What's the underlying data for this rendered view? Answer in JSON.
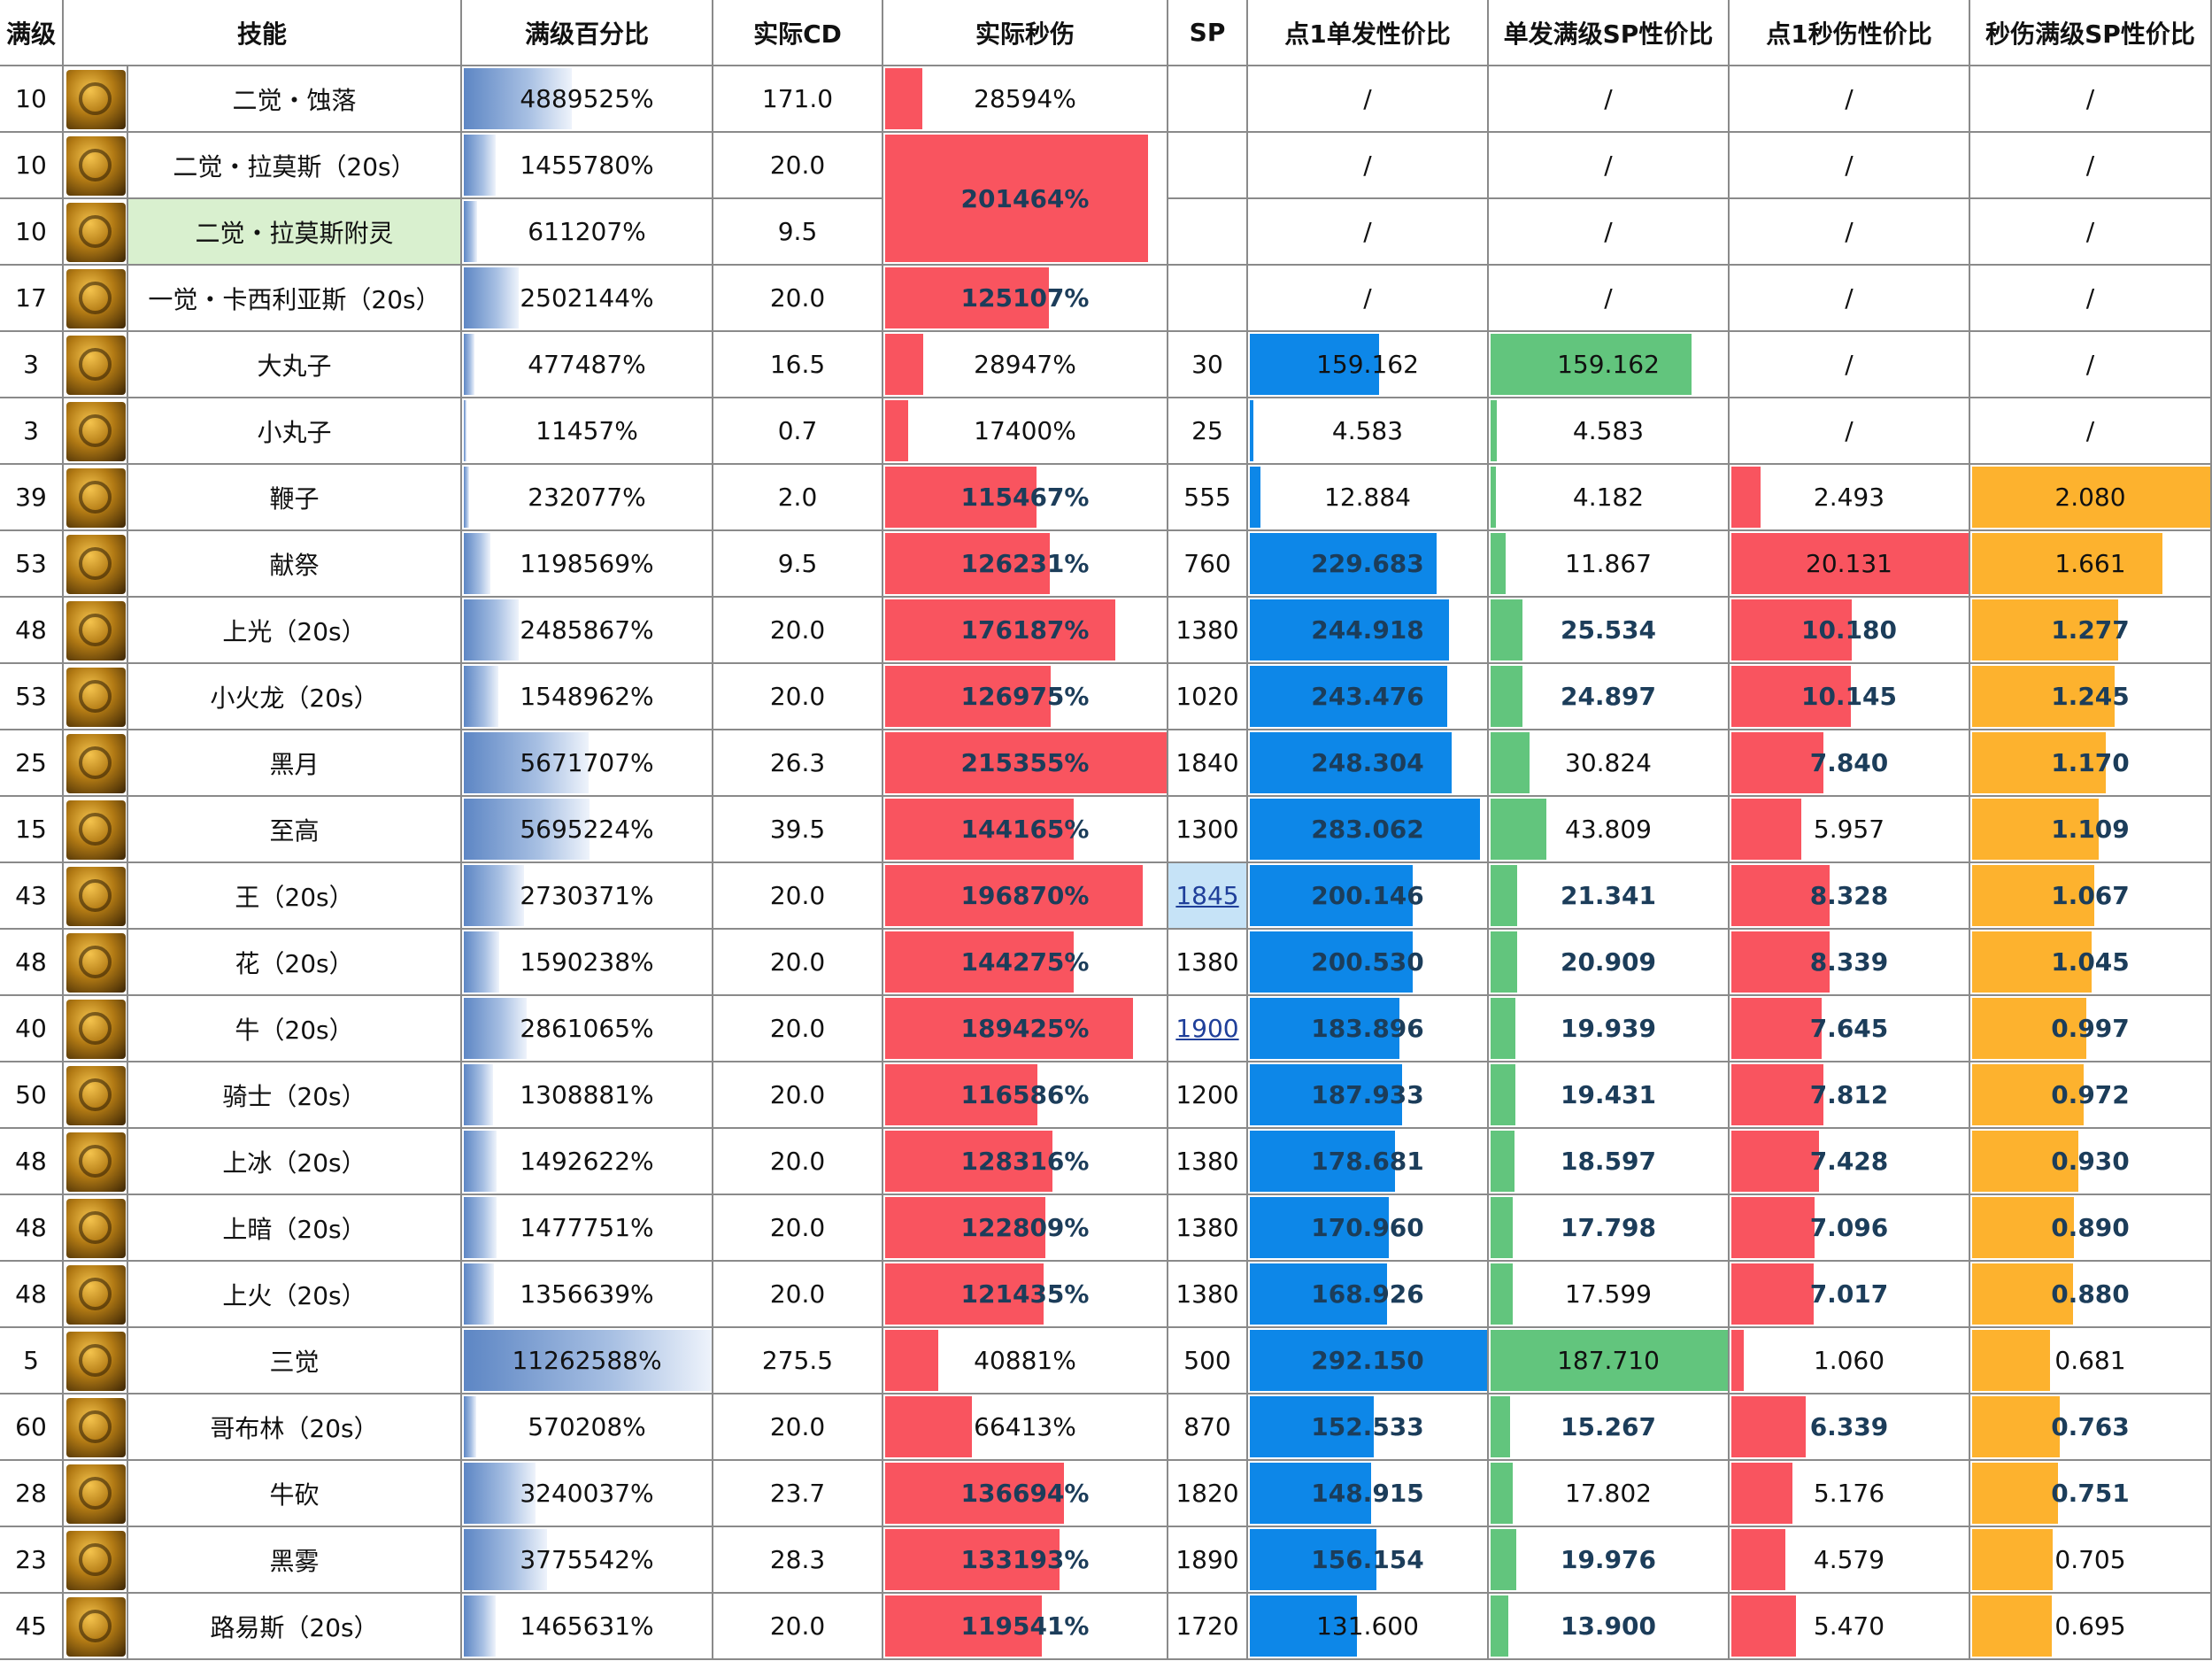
{
  "headers": [
    "满级",
    "技能",
    "满级百分比",
    "实际CD",
    "实际秒伤",
    "SP",
    "点1单发性价比",
    "单发满级SP性价比",
    "点1秒伤性价比",
    "秒伤满级SP性价比"
  ],
  "colors": {
    "percent_bar": "#5d86c4",
    "dps_bar": "#f9545f",
    "single_value_bar": "#0d87e8",
    "single_sp_bar": "#62c57d",
    "dps_value_bar": "#f9545f",
    "dps_sp_bar": "#fdb22e",
    "grid": "#8a8a8a"
  },
  "scales": {
    "percent_max": 11262588,
    "dps_max": 215355,
    "single_max": 292.15,
    "single_sp_max": 187.71,
    "dps_value_max": 20.131,
    "dps_sp_max": 2.08
  },
  "rows": [
    {
      "level": "10",
      "name": "二觉・蚀落",
      "icon": "crescent-swirl-icon",
      "percent": "4889525%",
      "pct": 4889525,
      "cd": "171.0",
      "dps": "28594%",
      "dpsv": 28594,
      "sp": "",
      "single": "/",
      "sv": 0,
      "single_sp": "/",
      "ssv": 0,
      "dps_val": "/",
      "dv": 0,
      "dps_sp": "/",
      "dsv": 0
    },
    {
      "level": "10",
      "name": "二觉・拉莫斯（20s）",
      "icon": "lamos-dragon-icon",
      "percent": "1455780%",
      "pct": 1455780,
      "cd": "20.0",
      "dps": "201464%",
      "dpsv": 201464,
      "dps_span": 2,
      "sp": "",
      "single": "/",
      "sv": 0,
      "single_sp": "/",
      "ssv": 0,
      "dps_val": "/",
      "dv": 0,
      "dps_sp": "/",
      "dsv": 0
    },
    {
      "level": "10",
      "name": "二觉・拉莫斯附灵",
      "icon": "lamos-dragon-icon",
      "name_highlight": true,
      "percent": "611207%",
      "pct": 611207,
      "cd": "9.5",
      "dps": "",
      "dpsv": 0,
      "dps_merged": true,
      "sp": "",
      "single": "/",
      "sv": 0,
      "single_sp": "/",
      "ssv": 0,
      "dps_val": "/",
      "dv": 0,
      "dps_sp": "/",
      "dsv": 0
    },
    {
      "level": "17",
      "name": "一觉・卡西利亚斯（20s）",
      "icon": "demon-mask-icon",
      "percent": "2502144%",
      "pct": 2502144,
      "cd": "20.0",
      "dps": "125107%",
      "dpsv": 125107,
      "sp": "",
      "single": "/",
      "sv": 0,
      "single_sp": "/",
      "ssv": 0,
      "dps_val": "/",
      "dv": 0,
      "dps_sp": "/",
      "dsv": 0
    },
    {
      "level": "3",
      "name": "大丸子",
      "icon": "flame-pillars-icon",
      "percent": "477487%",
      "pct": 477487,
      "cd": "16.5",
      "dps": "28947%",
      "dpsv": 28947,
      "sp": "30",
      "single": "159.162",
      "sv": 159.162,
      "single_sp": "159.162",
      "ssv": 159.162,
      "dps_val": "/",
      "dv": 0,
      "dps_sp": "/",
      "dsv": 0
    },
    {
      "level": "3",
      "name": "小丸子",
      "icon": "running-figure-icon",
      "percent": "11457%",
      "pct": 11457,
      "cd": "0.7",
      "dps": "17400%",
      "dpsv": 17400,
      "sp": "25",
      "single": "4.583",
      "sv": 4.583,
      "single_sp": "4.583",
      "ssv": 4.583,
      "dps_val": "/",
      "dv": 0,
      "dps_sp": "/",
      "dsv": 0
    },
    {
      "level": "39",
      "name": "鞭子",
      "icon": "whip-icon",
      "percent": "232077%",
      "pct": 232077,
      "cd": "2.0",
      "dps": "115467%",
      "dpsv": 115467,
      "sp": "555",
      "single": "12.884",
      "sv": 12.884,
      "single_sp": "4.182",
      "ssv": 4.182,
      "dps_val": "2.493",
      "dv": 2.493,
      "dps_sp": "2.080",
      "dsv": 2.08
    },
    {
      "level": "53",
      "name": "献祭",
      "icon": "sunburst-icon",
      "percent": "1198569%",
      "pct": 1198569,
      "cd": "9.5",
      "dps": "126231%",
      "dpsv": 126231,
      "sp": "760",
      "single": "229.683",
      "sv": 229.683,
      "single_sp": "11.867",
      "ssv": 11.867,
      "dps_val": "20.131",
      "dv": 20.131,
      "dps_sp": "1.661",
      "dsv": 1.661
    },
    {
      "level": "48",
      "name": "上光（20s）",
      "icon": "light-sigil-icon",
      "percent": "2485867%",
      "pct": 2485867,
      "cd": "20.0",
      "dps": "176187%",
      "dpsv": 176187,
      "sp": "1380",
      "single": "244.918",
      "sv": 244.918,
      "single_sp": "25.534",
      "ssv": 25.534,
      "dps_val": "10.180",
      "dv": 10.18,
      "dps_sp": "1.277",
      "dsv": 1.277
    },
    {
      "level": "53",
      "name": "小火龙（20s）",
      "icon": "fire-dragon-icon",
      "percent": "1548962%",
      "pct": 1548962,
      "cd": "20.0",
      "dps": "126975%",
      "dpsv": 126975,
      "sp": "1020",
      "single": "243.476",
      "sv": 243.476,
      "single_sp": "24.897",
      "ssv": 24.897,
      "dps_val": "10.145",
      "dv": 10.145,
      "dps_sp": "1.245",
      "dsv": 1.245
    },
    {
      "level": "25",
      "name": "黑月",
      "icon": "black-moon-icon",
      "percent": "5671707%",
      "pct": 5671707,
      "cd": "26.3",
      "dps": "215355%",
      "dpsv": 215355,
      "sp": "1840",
      "single": "248.304",
      "sv": 248.304,
      "single_sp": "30.824",
      "ssv": 30.824,
      "dps_val": "7.840",
      "dv": 7.84,
      "dps_sp": "1.170",
      "dsv": 1.17
    },
    {
      "level": "15",
      "name": "至高",
      "icon": "supreme-sigil-icon",
      "percent": "5695224%",
      "pct": 5695224,
      "cd": "39.5",
      "dps": "144165%",
      "dpsv": 144165,
      "sp": "1300",
      "single": "283.062",
      "sv": 283.062,
      "single_sp": "43.809",
      "ssv": 43.809,
      "dps_val": "5.957",
      "dv": 5.957,
      "dps_sp": "1.109",
      "dsv": 1.109
    },
    {
      "level": "43",
      "name": "王（20s）",
      "icon": "crown-icon",
      "percent": "2730371%",
      "pct": 2730371,
      "cd": "20.0",
      "dps": "196870%",
      "dpsv": 196870,
      "sp": "1845",
      "sp_link": true,
      "sp_highlight": true,
      "single": "200.146",
      "sv": 200.146,
      "single_sp": "21.341",
      "ssv": 21.341,
      "dps_val": "8.328",
      "dv": 8.328,
      "dps_sp": "1.067",
      "dsv": 1.067
    },
    {
      "level": "48",
      "name": "花（20s）",
      "icon": "flower-icon",
      "percent": "1590238%",
      "pct": 1590238,
      "cd": "20.0",
      "dps": "144275%",
      "dpsv": 144275,
      "sp": "1380",
      "single": "200.530",
      "sv": 200.53,
      "single_sp": "20.909",
      "ssv": 20.909,
      "dps_val": "8.339",
      "dv": 8.339,
      "dps_sp": "1.045",
      "dsv": 1.045
    },
    {
      "level": "40",
      "name": "牛（20s）",
      "icon": "bull-icon",
      "percent": "2861065%",
      "pct": 2861065,
      "cd": "20.0",
      "dps": "189425%",
      "dpsv": 189425,
      "sp": "1900",
      "sp_link": true,
      "single": "183.896",
      "sv": 183.896,
      "single_sp": "19.939",
      "ssv": 19.939,
      "dps_val": "7.645",
      "dv": 7.645,
      "dps_sp": "0.997",
      "dsv": 0.997
    },
    {
      "level": "50",
      "name": "骑士（20s）",
      "icon": "shield-icon",
      "percent": "1308881%",
      "pct": 1308881,
      "cd": "20.0",
      "dps": "116586%",
      "dpsv": 116586,
      "sp": "1200",
      "single": "187.933",
      "sv": 187.933,
      "single_sp": "19.431",
      "ssv": 19.431,
      "dps_val": "7.812",
      "dv": 7.812,
      "dps_sp": "0.972",
      "dsv": 0.972
    },
    {
      "level": "48",
      "name": "上冰（20s）",
      "icon": "ice-sigil-icon",
      "percent": "1492622%",
      "pct": 1492622,
      "cd": "20.0",
      "dps": "128316%",
      "dpsv": 128316,
      "sp": "1380",
      "single": "178.681",
      "sv": 178.681,
      "single_sp": "18.597",
      "ssv": 18.597,
      "dps_val": "7.428",
      "dv": 7.428,
      "dps_sp": "0.930",
      "dsv": 0.93
    },
    {
      "level": "48",
      "name": "上暗（20s）",
      "icon": "dark-sigil-icon",
      "percent": "1477751%",
      "pct": 1477751,
      "cd": "20.0",
      "dps": "122809%",
      "dpsv": 122809,
      "sp": "1380",
      "single": "170.960",
      "sv": 170.96,
      "single_sp": "17.798",
      "ssv": 17.798,
      "dps_val": "7.096",
      "dv": 7.096,
      "dps_sp": "0.890",
      "dsv": 0.89
    },
    {
      "level": "48",
      "name": "上火（20s）",
      "icon": "fire-sigil-icon",
      "percent": "1356639%",
      "pct": 1356639,
      "cd": "20.0",
      "dps": "121435%",
      "dpsv": 121435,
      "sp": "1380",
      "single": "168.926",
      "sv": 168.926,
      "single_sp": "17.599",
      "ssv": 17.599,
      "dps_val": "7.017",
      "dv": 7.017,
      "dps_sp": "0.880",
      "dsv": 0.88
    },
    {
      "level": "5",
      "name": "三觉",
      "icon": "third-awakening-icon",
      "percent": "11262588%",
      "pct": 11262588,
      "cd": "275.5",
      "dps": "40881%",
      "dpsv": 40881,
      "sp": "500",
      "single": "292.150",
      "sv": 292.15,
      "single_sp": "187.710",
      "ssv": 187.71,
      "dps_val": "1.060",
      "dv": 1.06,
      "dps_sp": "0.681",
      "dsv": 0.681
    },
    {
      "level": "60",
      "name": "哥布林（20s）",
      "icon": "goblin-sigil-icon",
      "percent": "570208%",
      "pct": 570208,
      "cd": "20.0",
      "dps": "66413%",
      "dpsv": 66413,
      "sp": "870",
      "single": "152.533",
      "sv": 152.533,
      "single_sp": "15.267",
      "ssv": 15.267,
      "dps_val": "6.339",
      "dv": 6.339,
      "dps_sp": "0.763",
      "dsv": 0.763
    },
    {
      "level": "28",
      "name": "牛砍",
      "icon": "bull-slash-icon",
      "percent": "3240037%",
      "pct": 3240037,
      "cd": "23.7",
      "dps": "136694%",
      "dpsv": 136694,
      "sp": "1820",
      "single": "148.915",
      "sv": 148.915,
      "single_sp": "17.802",
      "ssv": 17.802,
      "dps_val": "5.176",
      "dv": 5.176,
      "dps_sp": "0.751",
      "dsv": 0.751
    },
    {
      "level": "23",
      "name": "黑雾",
      "icon": "black-mist-icon",
      "percent": "3775542%",
      "pct": 3775542,
      "cd": "28.3",
      "dps": "133193%",
      "dpsv": 133193,
      "sp": "1890",
      "single": "156.154",
      "sv": 156.154,
      "single_sp": "19.976",
      "ssv": 19.976,
      "dps_val": "4.579",
      "dv": 4.579,
      "dps_sp": "0.705",
      "dsv": 0.705
    },
    {
      "level": "45",
      "name": "路易斯（20s）",
      "icon": "louis-sigil-icon",
      "percent": "1465631%",
      "pct": 1465631,
      "cd": "20.0",
      "dps": "119541%",
      "dpsv": 119541,
      "sp": "1720",
      "single": "131.600",
      "sv": 131.6,
      "single_sp": "13.900",
      "ssv": 13.9,
      "dps_val": "5.470",
      "dv": 5.47,
      "dps_sp": "0.695",
      "dsv": 0.695
    }
  ]
}
